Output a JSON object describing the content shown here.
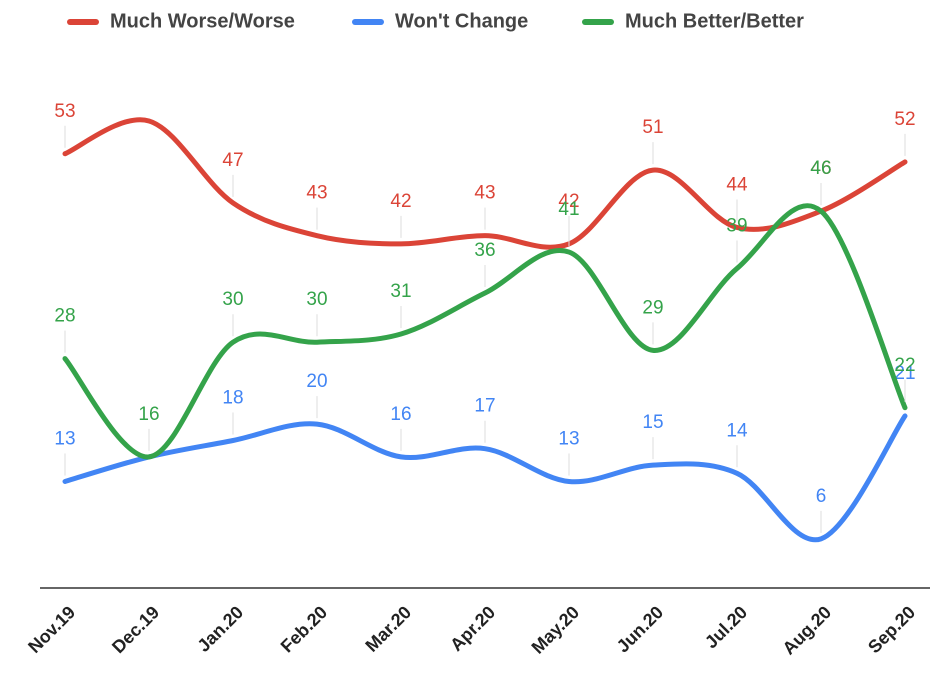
{
  "chart_data": {
    "type": "line",
    "categories": [
      "Nov.19",
      "Dec.19",
      "Jan.20",
      "Feb.20",
      "Mar.20",
      "Apr.20",
      "May.20",
      "Jun.20",
      "Jul.20",
      "Aug.20",
      "Sep.20"
    ],
    "series": [
      {
        "name": "Much Worse/Worse",
        "color": "#db4437",
        "values": [
          53,
          57,
          47,
          43,
          42,
          43,
          42,
          51,
          44,
          46,
          52
        ],
        "value_labels": [
          "53",
          null,
          "47",
          "43",
          "42",
          "43",
          "42",
          "51",
          "44",
          "46",
          "52"
        ]
      },
      {
        "name": "Won't Change",
        "color": "#4285f4",
        "values": [
          13,
          16,
          18,
          20,
          16,
          17,
          13,
          15,
          14,
          6,
          21
        ],
        "value_labels": [
          "13",
          null,
          "18",
          "20",
          "16",
          "17",
          "13",
          "15",
          "14",
          "6",
          "21"
        ]
      },
      {
        "name": "Much Better/Better",
        "color": "#34a34a",
        "values": [
          28,
          16,
          30,
          30,
          31,
          36,
          41,
          29,
          39,
          46,
          22
        ],
        "value_labels": [
          "28",
          "16",
          "30",
          "30",
          "31",
          "36",
          "41",
          "29",
          "39",
          "46",
          "22"
        ]
      }
    ],
    "ylim": [
      0,
      62
    ],
    "legend": "top"
  }
}
